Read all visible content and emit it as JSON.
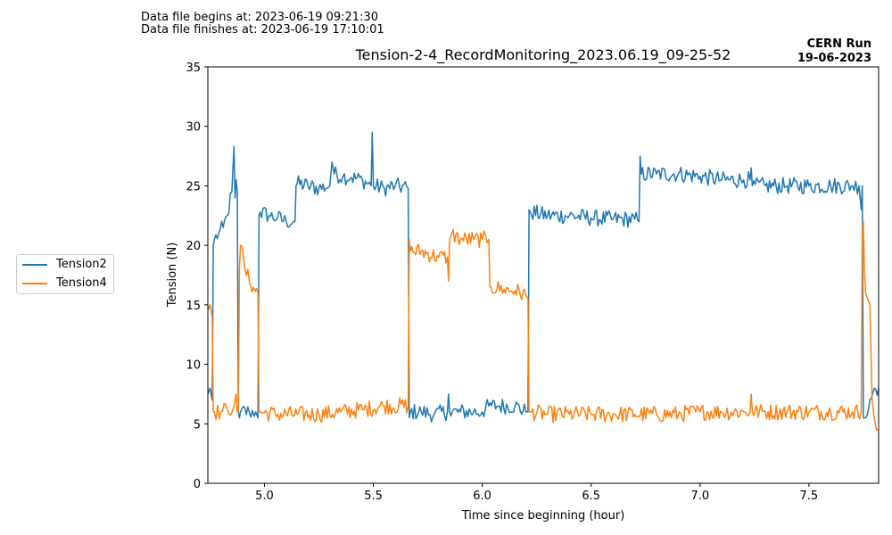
{
  "header": {
    "begin_text": "Data file begins at: 2023-06-19 09:21:30",
    "finish_text": "Data file finishes at: 2023-06-19 17:10:01",
    "run_label": "CERN Run",
    "run_date": "19-06-2023"
  },
  "chart_data": {
    "type": "line",
    "title": "Tension-2-4_RecordMonitoring_2023.06.19_09-25-52",
    "xlabel": "Time since beginning (hour)",
    "ylabel": "Tension (N)",
    "xlim": [
      4.74,
      7.82
    ],
    "ylim": [
      0,
      35
    ],
    "xticks": [
      5.0,
      5.5,
      6.0,
      6.5,
      7.0,
      7.5
    ],
    "xtick_labels": [
      "5.0",
      "5.5",
      "6.0",
      "6.5",
      "7.0",
      "7.5"
    ],
    "yticks": [
      0,
      5,
      10,
      15,
      20,
      25,
      30,
      35
    ],
    "ytick_labels": [
      "0",
      "5",
      "10",
      "15",
      "20",
      "25",
      "30",
      "35"
    ],
    "grid": false,
    "legend_position": "outside-left",
    "series": [
      {
        "name": "Tension2",
        "color": "#1f77b4",
        "x": [
          4.74,
          4.75,
          4.76,
          4.765,
          4.77,
          4.79,
          4.81,
          4.83,
          4.85,
          4.86,
          4.865,
          4.87,
          4.875,
          4.88,
          4.885,
          4.89,
          4.93,
          4.96,
          4.97,
          4.975,
          4.98,
          5.02,
          5.06,
          5.1,
          5.14,
          5.145,
          5.15,
          5.2,
          5.25,
          5.3,
          5.31,
          5.32,
          5.36,
          5.4,
          5.45,
          5.49,
          5.495,
          5.5,
          5.55,
          5.6,
          5.66,
          5.665,
          5.67,
          5.72,
          5.78,
          5.84,
          5.845,
          5.85,
          5.9,
          5.96,
          6.0,
          6.03,
          6.08,
          6.15,
          6.2,
          6.21,
          6.215,
          6.22,
          6.3,
          6.4,
          6.5,
          6.6,
          6.7,
          6.72,
          6.725,
          6.73,
          6.8,
          6.9,
          7.0,
          7.1,
          7.2,
          7.23,
          7.235,
          7.24,
          7.3,
          7.4,
          7.5,
          7.6,
          7.7,
          7.73,
          7.74,
          7.745,
          7.75,
          7.76,
          7.78,
          7.8,
          7.82
        ],
        "y": [
          7.5,
          8.0,
          7.0,
          20.0,
          20.5,
          21.0,
          21.5,
          22.5,
          24.5,
          28.3,
          24.0,
          25.5,
          24.5,
          6.0,
          5.5,
          6.0,
          6.0,
          6.0,
          5.5,
          22.5,
          22.8,
          22.5,
          22.3,
          22.0,
          22.0,
          25.0,
          25.2,
          25.0,
          24.8,
          25.0,
          27.0,
          26.0,
          25.8,
          25.7,
          25.5,
          25.0,
          29.5,
          25.0,
          24.8,
          25.0,
          24.8,
          5.5,
          6.0,
          6.0,
          5.8,
          6.0,
          7.5,
          6.0,
          6.0,
          6.0,
          6.0,
          6.5,
          6.5,
          6.5,
          6.0,
          6.0,
          23.0,
          22.8,
          22.5,
          22.5,
          22.3,
          22.2,
          22.2,
          22.0,
          27.5,
          26.0,
          26.0,
          26.0,
          25.8,
          25.5,
          25.5,
          25.5,
          26.5,
          25.0,
          25.0,
          25.0,
          25.0,
          25.0,
          25.0,
          25.0,
          23.0,
          25.0,
          5.5,
          5.5,
          7.0,
          8.0,
          8.0
        ]
      },
      {
        "name": "Tension4",
        "color": "#ff7f0e",
        "x": [
          4.74,
          4.75,
          4.76,
          4.765,
          4.77,
          4.8,
          4.83,
          4.86,
          4.87,
          4.875,
          4.88,
          4.885,
          4.89,
          4.91,
          4.93,
          4.95,
          4.97,
          4.975,
          4.98,
          5.05,
          5.15,
          5.25,
          5.35,
          5.45,
          5.55,
          5.66,
          5.665,
          5.67,
          5.72,
          5.8,
          5.84,
          5.845,
          5.85,
          5.86,
          5.9,
          5.96,
          6.0,
          6.03,
          6.035,
          6.04,
          6.1,
          6.15,
          6.2,
          6.21,
          6.215,
          6.22,
          6.3,
          6.4,
          6.5,
          6.6,
          6.7,
          6.8,
          6.9,
          7.0,
          7.1,
          7.2,
          7.23,
          7.235,
          7.24,
          7.3,
          7.4,
          7.5,
          7.6,
          7.7,
          7.74,
          7.745,
          7.75,
          7.755,
          7.76,
          7.77,
          7.78,
          7.79,
          7.8,
          7.81,
          7.82
        ],
        "y": [
          14.5,
          15.0,
          14.0,
          6.0,
          6.0,
          6.0,
          6.2,
          6.5,
          7.5,
          6.0,
          6.0,
          18.0,
          20.0,
          18.0,
          17.0,
          16.5,
          16.0,
          6.0,
          6.0,
          5.8,
          5.8,
          5.8,
          6.0,
          6.2,
          6.5,
          6.5,
          20.5,
          19.5,
          19.5,
          19.0,
          19.0,
          17.0,
          20.5,
          21.0,
          20.5,
          20.5,
          20.5,
          20.5,
          16.5,
          16.5,
          16.3,
          16.2,
          15.8,
          15.5,
          6.0,
          6.0,
          5.8,
          5.8,
          5.8,
          5.8,
          5.8,
          5.8,
          5.8,
          6.0,
          6.0,
          6.0,
          6.0,
          7.5,
          6.0,
          6.0,
          6.0,
          6.0,
          6.0,
          6.0,
          6.0,
          21.0,
          22.0,
          18.0,
          16.0,
          15.5,
          15.0,
          7.0,
          5.5,
          4.5,
          4.5
        ]
      }
    ]
  }
}
